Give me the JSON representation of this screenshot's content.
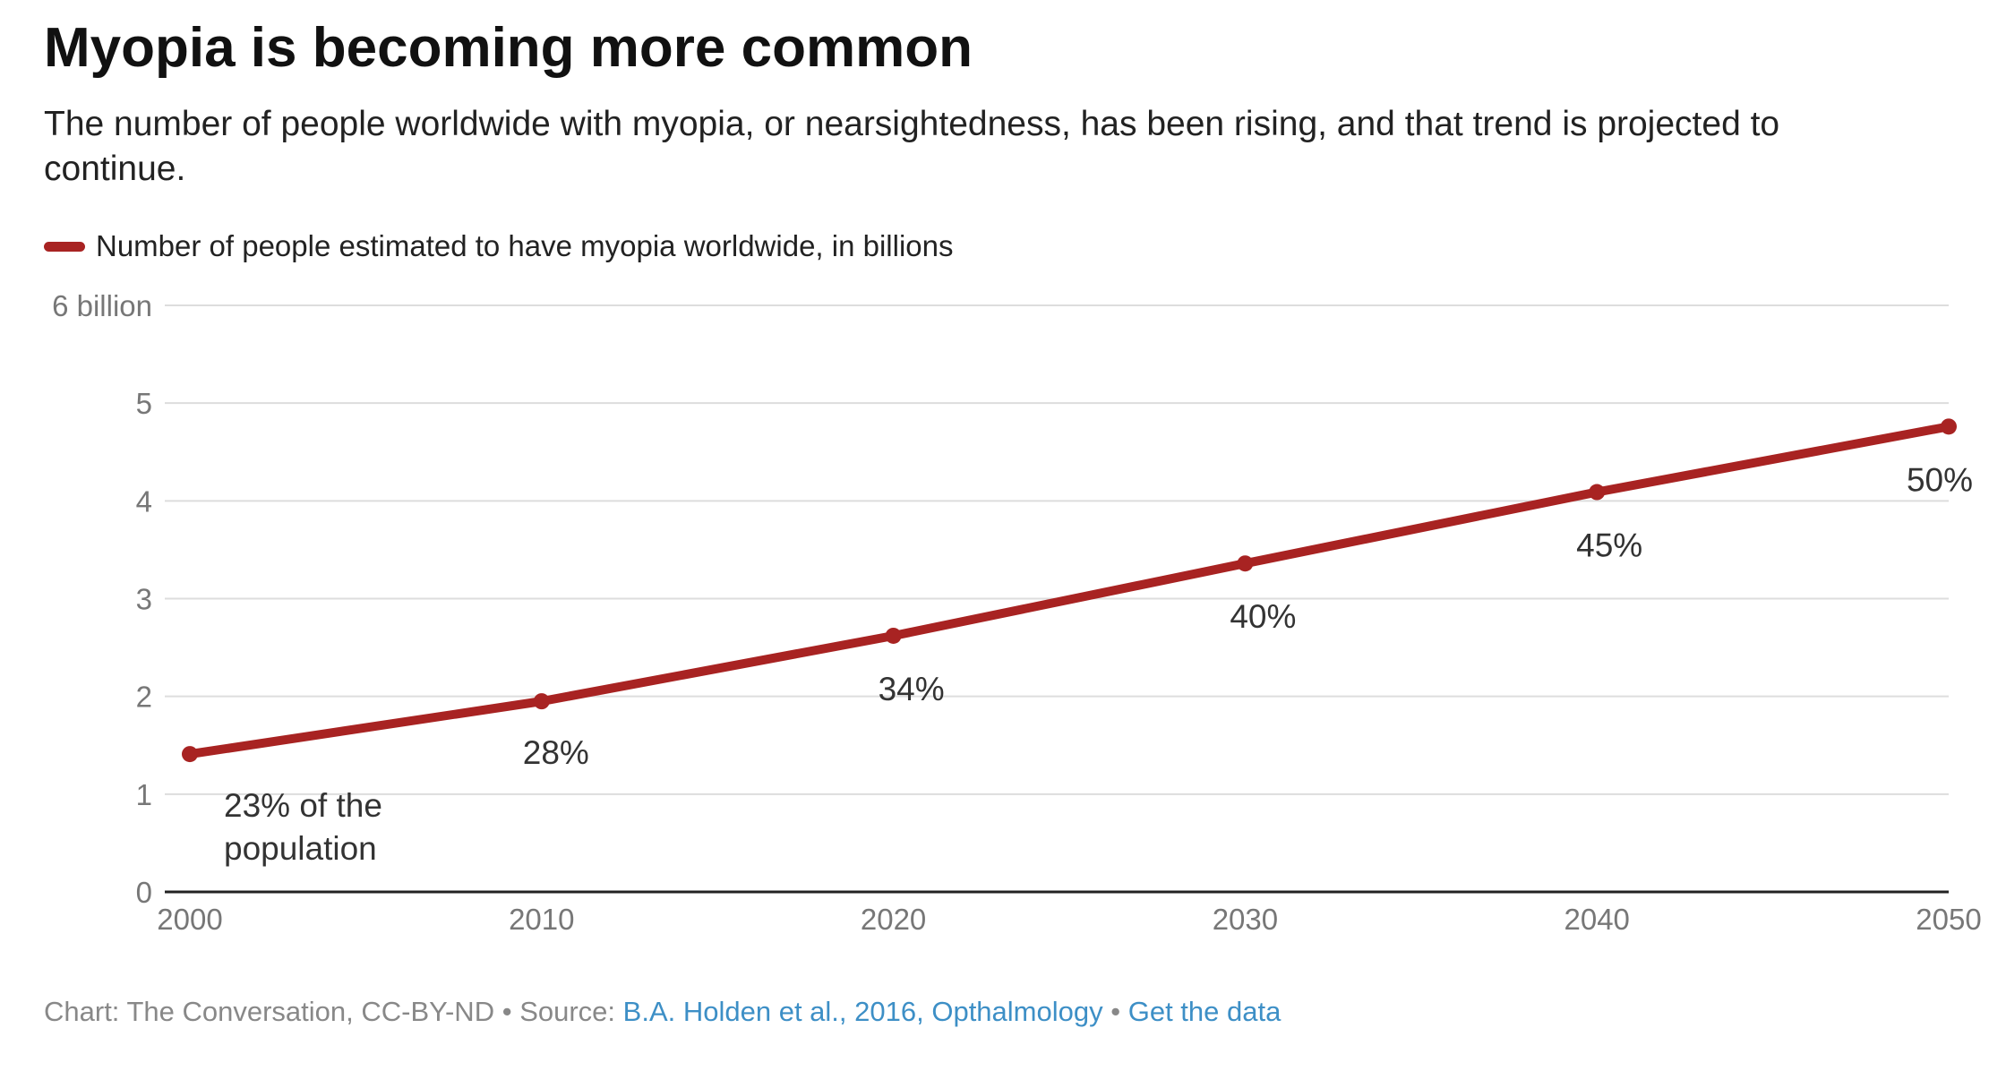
{
  "title": "Myopia is becoming more common",
  "subtitle": "The number of people worldwide with myopia, or nearsightedness, has been rising, and that trend is projected to continue.",
  "footer": {
    "chart_credit": "Chart: The Conversation, CC-BY-ND",
    "separator": "•",
    "source_prefix": "Source:",
    "source_link": "B.A. Holden et al., 2016, Opthalmology",
    "data_link": "Get the data"
  },
  "colors": {
    "series": "#a82322",
    "grid": "#dddddd",
    "axis": "#222222",
    "tick_text": "#777777",
    "link": "#3d8fc6"
  },
  "chart_data": {
    "type": "line",
    "title": "Myopia is becoming more common",
    "x": [
      2000,
      2010,
      2020,
      2030,
      2040,
      2050
    ],
    "series": [
      {
        "name": "Number of people estimated to have myopia worldwide, in billions",
        "values": [
          1.41,
          1.95,
          2.62,
          3.36,
          4.09,
          4.76
        ],
        "labels": [
          "23% of the population",
          "28%",
          "34%",
          "40%",
          "45%",
          "50%"
        ]
      }
    ],
    "x_ticks": [
      "2000",
      "2010",
      "2020",
      "2030",
      "2040",
      "2050"
    ],
    "y_ticks": [
      "0",
      "1",
      "2",
      "3",
      "4",
      "5",
      "6 billion"
    ],
    "xlim": [
      2000,
      2050
    ],
    "ylim": [
      0,
      6
    ],
    "grid": true,
    "legend": "top-left"
  }
}
